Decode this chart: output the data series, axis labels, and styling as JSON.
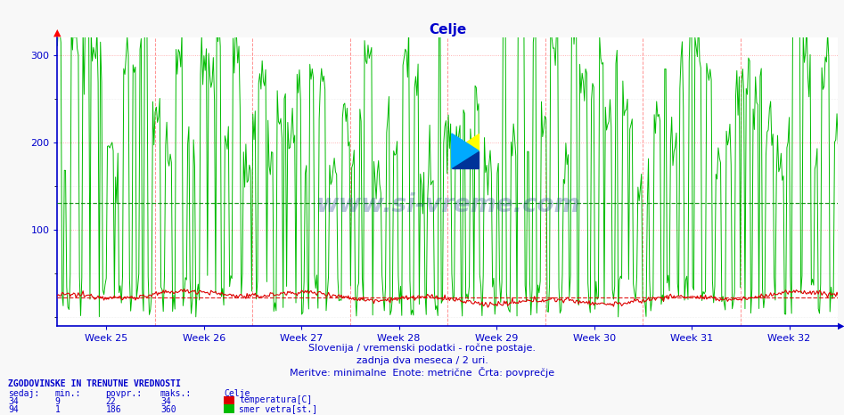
{
  "title": "Celje",
  "title_color": "#0000cc",
  "bg_color": "#f8f8f8",
  "plot_bg_color": "#ffffff",
  "ylim": [
    -10,
    320
  ],
  "yticks": [
    100,
    200,
    300
  ],
  "weeks": [
    "Week 25",
    "Week 26",
    "Week 27",
    "Week 28",
    "Week 29",
    "Week 30",
    "Week 31",
    "Week 32"
  ],
  "n_points": 672,
  "temp_min": 9,
  "temp_max": 34,
  "temp_avg": 22,
  "wind_min": 1,
  "wind_max": 360,
  "wind_avg": 186,
  "wind_avg_display": 130,
  "temp_color": "#dd0000",
  "wind_color": "#00bb00",
  "avg_wind_color": "#008800",
  "avg_temp_color": "#dd0000",
  "grid_color": "#aaaaaa",
  "vline_color": "#ff6666",
  "axis_color": "#0000cc",
  "text_color": "#0000cc",
  "subtitle1": "Slovenija / vremenski podatki - ročne postaje.",
  "subtitle2": "zadnja dva meseca / 2 uri.",
  "subtitle3": "Meritve: minimalne  Enote: metrične  Črta: povprečje",
  "footer_header": "ZGODOVINSKE IN TRENUTNE VREDNOSTI",
  "col_headers": [
    "sedaj:",
    "min.:",
    "povpr.:",
    "maks.:"
  ],
  "row1_vals": [
    "34",
    "9",
    "22",
    "34"
  ],
  "row2_vals": [
    "94",
    "1",
    "186",
    "360"
  ],
  "legend1": "temperatura[C]",
  "legend2": "smer vetra[st.]",
  "watermark": "www.si-vreme.com",
  "logo_colors": [
    "#ffff00",
    "#00ccff",
    "#003399"
  ]
}
